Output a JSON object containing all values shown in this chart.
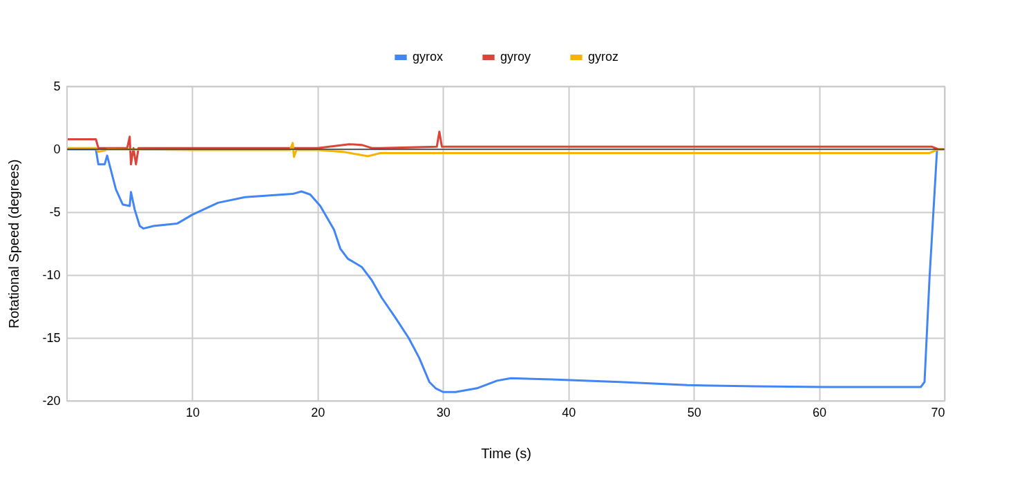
{
  "chart_data": {
    "type": "line",
    "xlabel": "Time (s)",
    "ylabel": "Rotational Speed (degrees)",
    "xlim": [
      0,
      70
    ],
    "ylim": [
      -20,
      5
    ],
    "xticks": [
      10,
      20,
      30,
      40,
      50,
      60,
      70
    ],
    "yticks": [
      -20,
      -15,
      -10,
      -5,
      0,
      5
    ],
    "grid": true,
    "legend": "top",
    "marker": "none",
    "line_style": "solid",
    "ref_lines": [
      {
        "axis": "y",
        "value": 0,
        "color": "#333333"
      }
    ],
    "series": [
      {
        "name": "gyrox",
        "color": "#4285f4",
        "x": [
          0,
          2.3,
          2.5,
          3,
          3.2,
          3.9,
          4.45,
          5.0,
          5.1,
          5.4,
          5.8,
          6.1,
          6.9,
          8.8,
          10,
          12.05,
          14.2,
          16.4,
          18,
          18.7,
          19.4,
          20.2,
          21.3,
          21.8,
          22.4,
          23.5,
          24.3,
          25.1,
          26.2,
          27.25,
          28.1,
          28.9,
          29.4,
          30,
          31,
          32.7,
          34.3,
          35.4,
          38.65,
          44.1,
          49.5,
          54.9,
          60.4,
          68.1,
          68.4,
          68.8,
          69.4
        ],
        "values": [
          0,
          0,
          -1.2,
          -1.2,
          -0.5,
          -3.2,
          -4.4,
          -4.5,
          -3.4,
          -4.8,
          -6.1,
          -6.3,
          -6.1,
          -5.9,
          -5.2,
          -4.25,
          -3.8,
          -3.65,
          -3.55,
          -3.35,
          -3.6,
          -4.5,
          -6.4,
          -7.9,
          -8.7,
          -9.35,
          -10.4,
          -11.8,
          -13.4,
          -15,
          -16.6,
          -18.5,
          -19.0,
          -19.3,
          -19.3,
          -19.0,
          -18.4,
          -18.2,
          -18.3,
          -18.5,
          -18.75,
          -18.85,
          -18.9,
          -18.9,
          -18.5,
          -10.2,
          0
        ]
      },
      {
        "name": "gyroy",
        "color": "#db4437",
        "x": [
          0,
          2.3,
          2.5,
          4.8,
          5.0,
          5.1,
          5.3,
          5.5,
          5.7,
          10,
          20,
          22.5,
          23.5,
          24.3,
          25,
          29.5,
          29.7,
          29.9,
          35,
          50,
          69,
          69.5,
          70
        ],
        "values": [
          0.8,
          0.8,
          0.1,
          0.1,
          1.0,
          -1.2,
          0.1,
          -1.2,
          0.1,
          0.1,
          0.1,
          0.4,
          0.35,
          0.1,
          0.1,
          0.2,
          1.4,
          0.2,
          0.2,
          0.2,
          0.2,
          0,
          0
        ]
      },
      {
        "name": "gyroz",
        "color": "#f4b400",
        "x": [
          0,
          2.3,
          2.5,
          3,
          3.2,
          10,
          17.8,
          18,
          18.1,
          18.3,
          20,
          22,
          24,
          25,
          30,
          50,
          68.8,
          69.5,
          70
        ],
        "values": [
          0.1,
          0.1,
          -0.2,
          -0.1,
          0,
          -0.05,
          -0.05,
          0.5,
          -0.6,
          -0.05,
          -0.05,
          -0.2,
          -0.55,
          -0.3,
          -0.3,
          -0.3,
          -0.3,
          0,
          0
        ]
      }
    ]
  }
}
